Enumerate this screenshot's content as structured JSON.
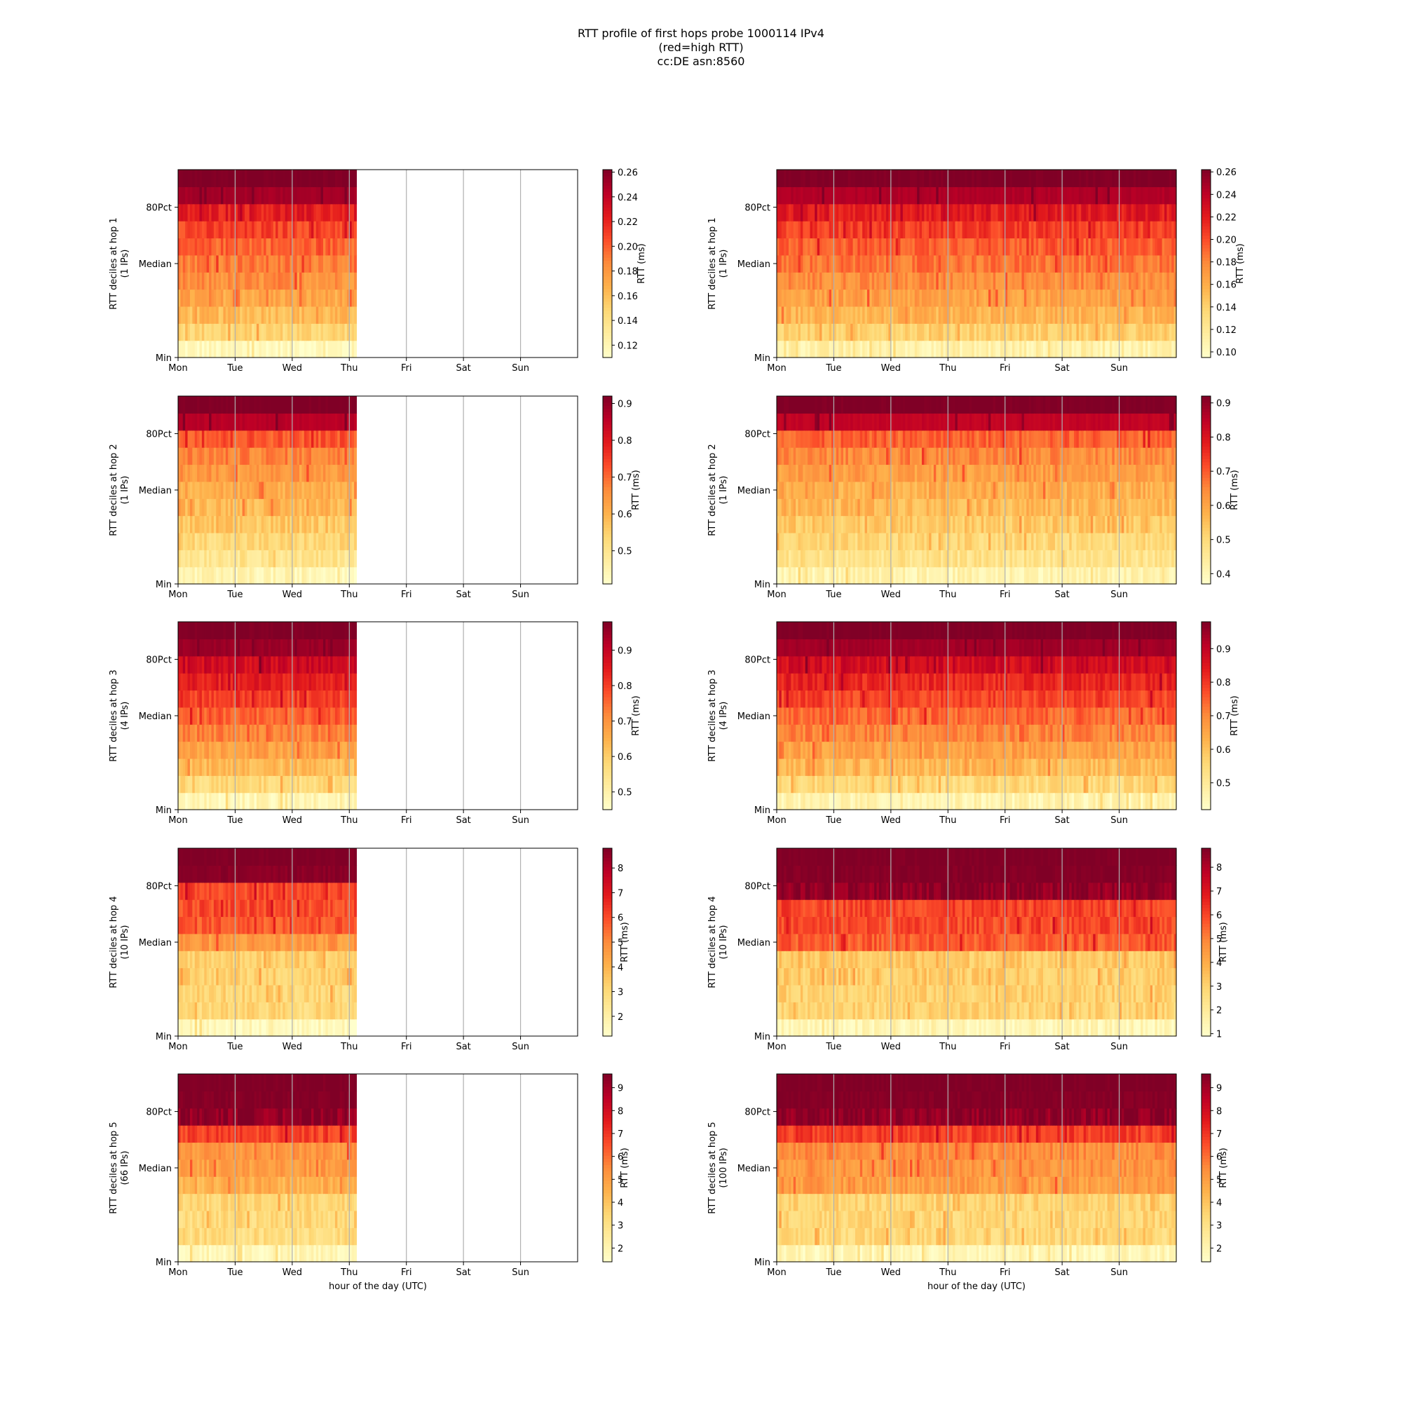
{
  "figure": {
    "title_lines": [
      "RTT profile of first hops probe 1000114 IPv4",
      "(red=high RTT)",
      "cc:DE asn:8560"
    ],
    "xlabel": "hour of the day (UTC)",
    "colorbar_label": "RTT (ms)",
    "colormap": [
      "#ffffcc",
      "#ffeda0",
      "#fed976",
      "#feb24c",
      "#fd8d3c",
      "#fc4e2a",
      "#e31a1c",
      "#bd0026",
      "#800026"
    ]
  },
  "chart_data": [
    {
      "type": "heatmap",
      "hop": 1,
      "column": "left",
      "ylabel": "RTT deciles at hop 1",
      "ylabel_sub": "(1 IPs)",
      "x_ticks": [
        "Mon",
        "Tue",
        "Wed",
        "Thu",
        "Fri",
        "Sat",
        "Sun"
      ],
      "y_ticks": [
        "Min",
        "Median",
        "80Pct"
      ],
      "data_extent_days": 3.13,
      "clim": [
        0.11,
        0.262
      ],
      "colorbar_ticks": [
        "0.12",
        "0.14",
        "0.16",
        "0.18",
        "0.20",
        "0.22",
        "0.24",
        "0.26"
      ],
      "colorbar_values": [
        0.12,
        0.14,
        0.16,
        0.18,
        0.2,
        0.22,
        0.24,
        0.26
      ],
      "decile_base_rtt": [
        0.115,
        0.148,
        0.162,
        0.172,
        0.182,
        0.19,
        0.198,
        0.208,
        0.222,
        0.25,
        0.262
      ]
    },
    {
      "type": "heatmap",
      "hop": 1,
      "column": "right",
      "ylabel": "RTT deciles at hop 1",
      "ylabel_sub": "(1 IPs)",
      "x_ticks": [
        "Mon",
        "Tue",
        "Wed",
        "Thu",
        "Fri",
        "Sat",
        "Sun"
      ],
      "y_ticks": [
        "Min",
        "Median",
        "80Pct"
      ],
      "data_extent_days": 7.0,
      "clim": [
        0.095,
        0.262
      ],
      "colorbar_ticks": [
        "0.10",
        "0.12",
        "0.14",
        "0.16",
        "0.18",
        "0.20",
        "0.22",
        "0.24",
        "0.26"
      ],
      "colorbar_values": [
        0.1,
        0.12,
        0.14,
        0.16,
        0.18,
        0.2,
        0.22,
        0.24,
        0.26
      ],
      "decile_base_rtt": [
        0.11,
        0.14,
        0.155,
        0.166,
        0.176,
        0.185,
        0.194,
        0.205,
        0.22,
        0.245,
        0.262
      ]
    },
    {
      "type": "heatmap",
      "hop": 2,
      "column": "left",
      "ylabel": "RTT deciles at hop 2",
      "ylabel_sub": "(1 IPs)",
      "x_ticks": [
        "Mon",
        "Tue",
        "Wed",
        "Thu",
        "Fri",
        "Sat",
        "Sun"
      ],
      "y_ticks": [
        "Min",
        "Median",
        "80Pct"
      ],
      "data_extent_days": 3.13,
      "clim": [
        0.41,
        0.92
      ],
      "colorbar_ticks": [
        "0.5",
        "0.6",
        "0.7",
        "0.8",
        "0.9"
      ],
      "colorbar_values": [
        0.5,
        0.6,
        0.7,
        0.8,
        0.9
      ],
      "decile_base_rtt": [
        0.44,
        0.5,
        0.53,
        0.56,
        0.59,
        0.61,
        0.64,
        0.67,
        0.72,
        0.86,
        0.92
      ]
    },
    {
      "type": "heatmap",
      "hop": 2,
      "column": "right",
      "ylabel": "RTT deciles at hop 2",
      "ylabel_sub": "(1 IPs)",
      "x_ticks": [
        "Mon",
        "Tue",
        "Wed",
        "Thu",
        "Fri",
        "Sat",
        "Sun"
      ],
      "y_ticks": [
        "Min",
        "Median",
        "80Pct"
      ],
      "data_extent_days": 7.0,
      "clim": [
        0.37,
        0.92
      ],
      "colorbar_ticks": [
        "0.4",
        "0.5",
        "0.6",
        "0.7",
        "0.8",
        "0.9"
      ],
      "colorbar_values": [
        0.4,
        0.5,
        0.6,
        0.7,
        0.8,
        0.9
      ],
      "decile_base_rtt": [
        0.41,
        0.47,
        0.5,
        0.53,
        0.56,
        0.58,
        0.61,
        0.64,
        0.69,
        0.84,
        0.92
      ]
    },
    {
      "type": "heatmap",
      "hop": 3,
      "column": "left",
      "ylabel": "RTT deciles at hop 3",
      "ylabel_sub": "(4 IPs)",
      "x_ticks": [
        "Mon",
        "Tue",
        "Wed",
        "Thu",
        "Fri",
        "Sat",
        "Sun"
      ],
      "y_ticks": [
        "Min",
        "Median",
        "80Pct"
      ],
      "data_extent_days": 3.13,
      "clim": [
        0.45,
        0.98
      ],
      "colorbar_ticks": [
        "0.5",
        "0.6",
        "0.7",
        "0.8",
        "0.9"
      ],
      "colorbar_values": [
        0.5,
        0.6,
        0.7,
        0.8,
        0.9
      ],
      "decile_base_rtt": [
        0.48,
        0.57,
        0.63,
        0.68,
        0.72,
        0.76,
        0.8,
        0.84,
        0.88,
        0.95,
        0.98
      ]
    },
    {
      "type": "heatmap",
      "hop": 3,
      "column": "right",
      "ylabel": "RTT deciles at hop 3",
      "ylabel_sub": "(4 IPs)",
      "x_ticks": [
        "Mon",
        "Tue",
        "Wed",
        "Thu",
        "Fri",
        "Sat",
        "Sun"
      ],
      "y_ticks": [
        "Min",
        "Median",
        "80Pct"
      ],
      "data_extent_days": 7.0,
      "clim": [
        0.42,
        0.98
      ],
      "colorbar_ticks": [
        "0.5",
        "0.6",
        "0.7",
        "0.8",
        "0.9"
      ],
      "colorbar_values": [
        0.5,
        0.6,
        0.7,
        0.8,
        0.9
      ],
      "decile_base_rtt": [
        0.46,
        0.55,
        0.61,
        0.66,
        0.7,
        0.74,
        0.78,
        0.82,
        0.87,
        0.94,
        0.98
      ]
    },
    {
      "type": "heatmap",
      "hop": 4,
      "column": "left",
      "ylabel": "RTT deciles at hop 4",
      "ylabel_sub": "(10 IPs)",
      "x_ticks": [
        "Mon",
        "Tue",
        "Wed",
        "Thu",
        "Fri",
        "Sat",
        "Sun"
      ],
      "y_ticks": [
        "Min",
        "Median",
        "80Pct"
      ],
      "data_extent_days": 3.13,
      "clim": [
        1.2,
        8.8
      ],
      "colorbar_ticks": [
        "2",
        "3",
        "4",
        "5",
        "6",
        "7",
        "8"
      ],
      "colorbar_values": [
        2,
        3,
        4,
        5,
        6,
        7,
        8
      ],
      "decile_base_rtt": [
        1.5,
        3.0,
        3.1,
        3.2,
        3.3,
        4.6,
        5.8,
        6.0,
        6.1,
        8.6,
        8.8
      ]
    },
    {
      "type": "heatmap",
      "hop": 4,
      "column": "right",
      "ylabel": "RTT deciles at hop 4",
      "ylabel_sub": "(10 IPs)",
      "x_ticks": [
        "Mon",
        "Tue",
        "Wed",
        "Thu",
        "Fri",
        "Sat",
        "Sun"
      ],
      "y_ticks": [
        "Min",
        "Median",
        "80Pct"
      ],
      "data_extent_days": 7.0,
      "clim": [
        0.9,
        8.8
      ],
      "colorbar_ticks": [
        "1",
        "2",
        "3",
        "4",
        "5",
        "6",
        "7",
        "8"
      ],
      "colorbar_values": [
        1,
        2,
        3,
        4,
        5,
        6,
        7,
        8
      ],
      "decile_base_rtt": [
        1.3,
        2.9,
        3.0,
        3.1,
        3.2,
        5.6,
        5.9,
        6.0,
        8.5,
        8.7,
        8.8
      ]
    },
    {
      "type": "heatmap",
      "hop": 5,
      "column": "left",
      "ylabel": "RTT deciles at hop 5",
      "ylabel_sub": "(66 IPs)",
      "x_ticks": [
        "Mon",
        "Tue",
        "Wed",
        "Thu",
        "Fri",
        "Sat",
        "Sun"
      ],
      "y_ticks": [
        "Min",
        "Median",
        "80Pct"
      ],
      "data_extent_days": 3.13,
      "clim": [
        1.4,
        9.6
      ],
      "colorbar_ticks": [
        "2",
        "3",
        "4",
        "5",
        "6",
        "7",
        "8",
        "9"
      ],
      "colorbar_values": [
        2,
        3,
        4,
        5,
        6,
        7,
        8,
        9
      ],
      "decile_base_rtt": [
        1.8,
        3.2,
        3.3,
        3.4,
        4.5,
        5.0,
        5.2,
        6.7,
        9.3,
        9.5,
        9.6
      ]
    },
    {
      "type": "heatmap",
      "hop": 5,
      "column": "right",
      "ylabel": "RTT deciles at hop 5",
      "ylabel_sub": "(100 IPs)",
      "x_ticks": [
        "Mon",
        "Tue",
        "Wed",
        "Thu",
        "Fri",
        "Sat",
        "Sun"
      ],
      "y_ticks": [
        "Min",
        "Median",
        "80Pct"
      ],
      "data_extent_days": 7.0,
      "clim": [
        1.4,
        9.6
      ],
      "colorbar_ticks": [
        "2",
        "3",
        "4",
        "5",
        "6",
        "7",
        "8",
        "9"
      ],
      "colorbar_values": [
        2,
        3,
        4,
        5,
        6,
        7,
        8,
        9
      ],
      "decile_base_rtt": [
        1.8,
        3.3,
        3.4,
        3.5,
        5.0,
        5.2,
        5.4,
        6.8,
        9.3,
        9.5,
        9.6
      ]
    }
  ]
}
